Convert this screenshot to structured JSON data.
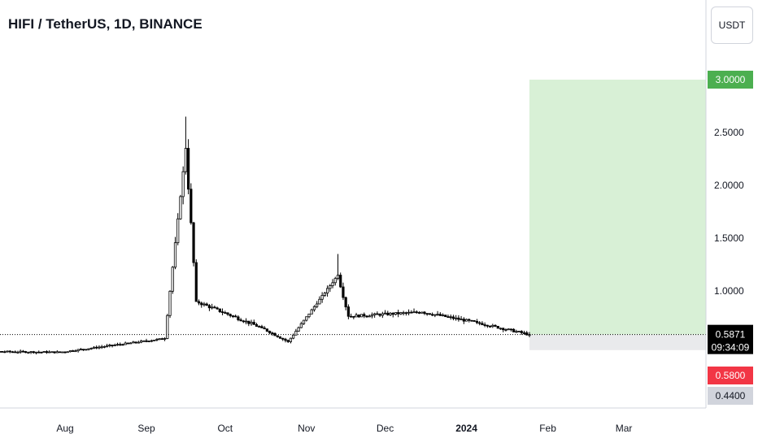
{
  "header": {
    "title": "HIFI / TetherUS, 1D, BINANCE",
    "currency_button": "USDT"
  },
  "colors": {
    "up": "#ffffff",
    "down": "#000000",
    "wick": "#000000",
    "target_zone": "#d8f0d6",
    "target_label": "#4caf50",
    "stop_zone": "#e9eaec",
    "stop_label": "#f23645",
    "price_label": "#000000",
    "axis_line": "#d1d4dc"
  },
  "chart_data": {
    "type": "candlestick",
    "symbol": "HIFI / TetherUS",
    "interval": "1D",
    "exchange": "BINANCE",
    "y_ticks": [
      "2.5000",
      "2.0000",
      "1.5000",
      "1.0000"
    ],
    "x_ticks": [
      "Aug",
      "Sep",
      "Oct",
      "Nov",
      "Dec",
      "2024",
      "Feb",
      "Mar"
    ],
    "ylim": [
      0.27,
      3.7
    ],
    "current_price": "0.5871",
    "countdown": "09:34:09",
    "position": {
      "target": "3.0000",
      "entry": "0.5871",
      "stop": "0.5800",
      "stop_bottom": "0.4400"
    },
    "key_points": [
      {
        "date": "2023-06-20",
        "close": 0.43
      },
      {
        "date": "2023-07-30",
        "close": 0.42
      },
      {
        "date": "2023-09-08",
        "close": 0.55
      },
      {
        "date": "2023-09-16",
        "high": 2.65,
        "close": 2.35
      },
      {
        "date": "2023-09-20",
        "close": 0.9
      },
      {
        "date": "2023-10-15",
        "close": 0.65
      },
      {
        "date": "2023-10-25",
        "close": 0.52
      },
      {
        "date": "2023-11-13",
        "high": 1.35,
        "close": 1.15
      },
      {
        "date": "2023-11-17",
        "close": 0.76
      },
      {
        "date": "2023-12-15",
        "close": 0.8
      },
      {
        "date": "2024-01-05",
        "close": 0.7
      },
      {
        "date": "2024-01-25",
        "close": 0.5871
      }
    ]
  }
}
